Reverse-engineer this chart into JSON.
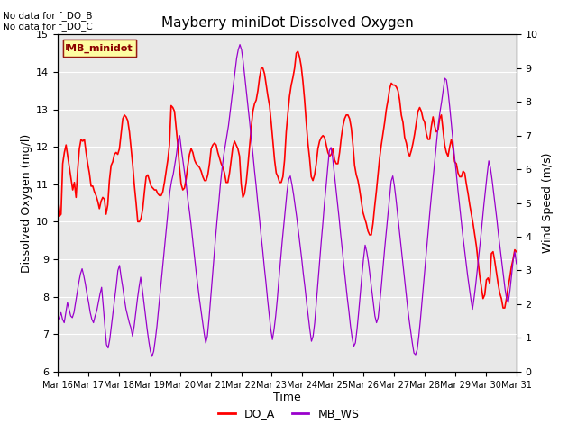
{
  "title": "Mayberry miniDot Dissolved Oxygen",
  "xlabel": "Time",
  "ylabel_left": "Dissolved Oxygen (mg/l)",
  "ylabel_right": "Wind Speed (m/s)",
  "ylim_left": [
    6.0,
    15.0
  ],
  "ylim_right": [
    0.0,
    10.0
  ],
  "no_data_text": [
    "No data for f_DO_B",
    "No data for f_DO_C"
  ],
  "legend_label": "MB_minidot",
  "x_tick_labels": [
    "Mar 16",
    "Mar 17",
    "Mar 18",
    "Mar 19",
    "Mar 20",
    "Mar 21",
    "Mar 22",
    "Mar 23",
    "Mar 24",
    "Mar 25",
    "Mar 26",
    "Mar 27",
    "Mar 28",
    "Mar 29",
    "Mar 30",
    "Mar 31"
  ],
  "do_color": "#FF0000",
  "ws_color": "#9900CC",
  "bg_color": "#ffffff",
  "plot_bg": "#e8e8e8",
  "plot_inner_bg": "#f0f0f0",
  "legend_line_colors": [
    "#FF0000",
    "#9900CC"
  ],
  "legend_line_labels": [
    "DO_A",
    "MB_WS"
  ],
  "do_a": [
    10.5,
    10.15,
    10.2,
    11.55,
    11.85,
    12.05,
    11.75,
    11.45,
    11.15,
    10.85,
    11.05,
    10.65,
    11.4,
    11.95,
    12.2,
    12.15,
    12.2,
    11.85,
    11.55,
    11.3,
    10.95,
    10.95,
    10.8,
    10.7,
    10.55,
    10.35,
    10.55,
    10.65,
    10.6,
    10.2,
    10.45,
    11.1,
    11.5,
    11.6,
    11.8,
    11.85,
    11.8,
    11.95,
    12.35,
    12.75,
    12.85,
    12.8,
    12.7,
    12.4,
    11.95,
    11.5,
    10.95,
    10.5,
    10.0,
    10.0,
    10.1,
    10.35,
    10.8,
    11.2,
    11.25,
    11.1,
    10.95,
    10.9,
    10.85,
    10.85,
    10.75,
    10.7,
    10.7,
    10.8,
    11.05,
    11.35,
    11.65,
    12.05,
    13.1,
    13.05,
    12.95,
    12.5,
    12.05,
    11.45,
    11.0,
    10.85,
    10.9,
    11.15,
    11.5,
    11.8,
    11.95,
    11.85,
    11.65,
    11.55,
    11.5,
    11.45,
    11.35,
    11.2,
    11.1,
    11.1,
    11.25,
    11.55,
    11.95,
    12.05,
    12.1,
    12.05,
    11.85,
    11.7,
    11.55,
    11.45,
    11.3,
    11.05,
    11.05,
    11.3,
    11.65,
    12.0,
    12.15,
    12.05,
    11.95,
    11.75,
    11.0,
    10.65,
    10.75,
    11.05,
    11.5,
    12.0,
    12.5,
    12.95,
    13.15,
    13.25,
    13.5,
    13.85,
    14.1,
    14.1,
    13.95,
    13.65,
    13.35,
    13.1,
    12.65,
    12.15,
    11.65,
    11.3,
    11.2,
    11.05,
    11.05,
    11.2,
    11.65,
    12.4,
    12.9,
    13.35,
    13.65,
    13.85,
    14.1,
    14.5,
    14.55,
    14.4,
    14.15,
    13.75,
    13.25,
    12.65,
    12.1,
    11.7,
    11.2,
    11.1,
    11.25,
    11.55,
    11.95,
    12.15,
    12.25,
    12.3,
    12.25,
    12.05,
    11.85,
    11.75,
    11.8,
    11.95,
    11.65,
    11.55,
    11.55,
    11.85,
    12.25,
    12.55,
    12.75,
    12.85,
    12.85,
    12.75,
    12.5,
    12.05,
    11.5,
    11.25,
    11.1,
    10.85,
    10.55,
    10.25,
    10.1,
    9.95,
    9.75,
    9.65,
    9.65,
    9.95,
    10.4,
    10.8,
    11.25,
    11.7,
    12.05,
    12.35,
    12.65,
    13.0,
    13.25,
    13.55,
    13.7,
    13.65,
    13.65,
    13.6,
    13.5,
    13.25,
    12.85,
    12.65,
    12.25,
    12.1,
    11.85,
    11.75,
    11.9,
    12.1,
    12.35,
    12.65,
    12.95,
    13.05,
    12.95,
    12.75,
    12.65,
    12.35,
    12.2,
    12.2,
    12.55,
    12.8,
    12.55,
    12.4,
    12.45,
    12.75,
    12.85,
    12.45,
    12.05,
    11.85,
    11.75,
    12.0,
    12.2,
    11.95,
    11.6,
    11.55,
    11.3,
    11.2,
    11.2,
    11.35,
    11.3,
    11.0,
    10.75,
    10.45,
    10.2,
    9.95,
    9.65,
    9.35,
    8.95,
    8.55,
    8.25,
    7.95,
    8.05,
    8.45,
    8.5,
    8.35,
    9.15,
    9.2,
    8.95,
    8.65,
    8.35,
    8.1,
    7.95,
    7.7,
    7.7,
    7.95,
    8.25,
    8.5,
    8.8,
    9.0,
    9.25,
    9.2
  ],
  "mb_ws": [
    1.5,
    1.6,
    1.75,
    1.55,
    1.45,
    1.75,
    2.05,
    1.85,
    1.65,
    1.6,
    1.75,
    2.05,
    2.35,
    2.65,
    2.9,
    3.05,
    2.85,
    2.6,
    2.3,
    2.05,
    1.75,
    1.55,
    1.45,
    1.65,
    1.8,
    2.05,
    2.3,
    2.5,
    1.95,
    1.35,
    0.8,
    0.7,
    0.95,
    1.35,
    1.75,
    2.15,
    2.55,
    3.0,
    3.15,
    2.8,
    2.5,
    2.15,
    1.85,
    1.65,
    1.45,
    1.3,
    1.05,
    1.35,
    1.75,
    2.15,
    2.5,
    2.8,
    2.45,
    2.05,
    1.65,
    1.25,
    0.9,
    0.6,
    0.45,
    0.6,
    0.95,
    1.35,
    1.85,
    2.35,
    2.85,
    3.35,
    3.85,
    4.35,
    4.85,
    5.35,
    5.65,
    5.85,
    6.15,
    6.45,
    6.85,
    7.0,
    6.6,
    6.25,
    5.9,
    5.55,
    5.1,
    4.75,
    4.35,
    3.9,
    3.45,
    3.0,
    2.6,
    2.2,
    1.85,
    1.5,
    1.15,
    0.85,
    1.05,
    1.55,
    2.15,
    2.75,
    3.35,
    3.95,
    4.5,
    5.0,
    5.55,
    6.0,
    6.4,
    6.7,
    7.0,
    7.3,
    7.7,
    8.1,
    8.5,
    8.9,
    9.3,
    9.55,
    9.7,
    9.55,
    9.2,
    8.75,
    8.3,
    7.85,
    7.4,
    6.9,
    6.45,
    5.95,
    5.5,
    5.0,
    4.55,
    4.05,
    3.6,
    3.1,
    2.65,
    2.15,
    1.7,
    1.25,
    0.95,
    1.25,
    1.65,
    2.15,
    2.75,
    3.3,
    3.85,
    4.35,
    4.85,
    5.35,
    5.7,
    5.8,
    5.55,
    5.25,
    4.9,
    4.55,
    4.15,
    3.75,
    3.35,
    2.9,
    2.5,
    2.05,
    1.65,
    1.25,
    0.9,
    1.05,
    1.45,
    2.05,
    2.65,
    3.25,
    3.85,
    4.4,
    5.0,
    5.5,
    6.05,
    6.55,
    6.65,
    6.35,
    5.9,
    5.45,
    5.0,
    4.55,
    4.05,
    3.6,
    3.1,
    2.65,
    2.2,
    1.8,
    1.35,
    1.0,
    0.75,
    0.85,
    1.25,
    1.75,
    2.3,
    2.85,
    3.35,
    3.75,
    3.55,
    3.25,
    2.85,
    2.45,
    2.05,
    1.65,
    1.45,
    1.6,
    2.05,
    2.55,
    3.1,
    3.65,
    4.15,
    4.65,
    5.15,
    5.65,
    5.8,
    5.5,
    5.1,
    4.65,
    4.2,
    3.75,
    3.3,
    2.85,
    2.4,
    1.95,
    1.55,
    1.2,
    0.85,
    0.55,
    0.5,
    0.65,
    1.05,
    1.55,
    2.1,
    2.65,
    3.2,
    3.75,
    4.3,
    4.85,
    5.35,
    5.85,
    6.35,
    6.85,
    7.35,
    7.7,
    8.0,
    8.35,
    8.7,
    8.65,
    8.3,
    7.85,
    7.35,
    6.85,
    6.35,
    5.9,
    5.4,
    4.95,
    4.5,
    4.05,
    3.65,
    3.25,
    2.85,
    2.5,
    2.15,
    1.85,
    2.2,
    2.6,
    3.05,
    3.5,
    3.95,
    4.45,
    4.95,
    5.4,
    5.85,
    6.25,
    6.05,
    5.7,
    5.3,
    4.9,
    4.5,
    4.05,
    3.65,
    3.25,
    2.85,
    2.45,
    2.15,
    2.05,
    2.4,
    2.85,
    3.3,
    3.55,
    3.2
  ]
}
